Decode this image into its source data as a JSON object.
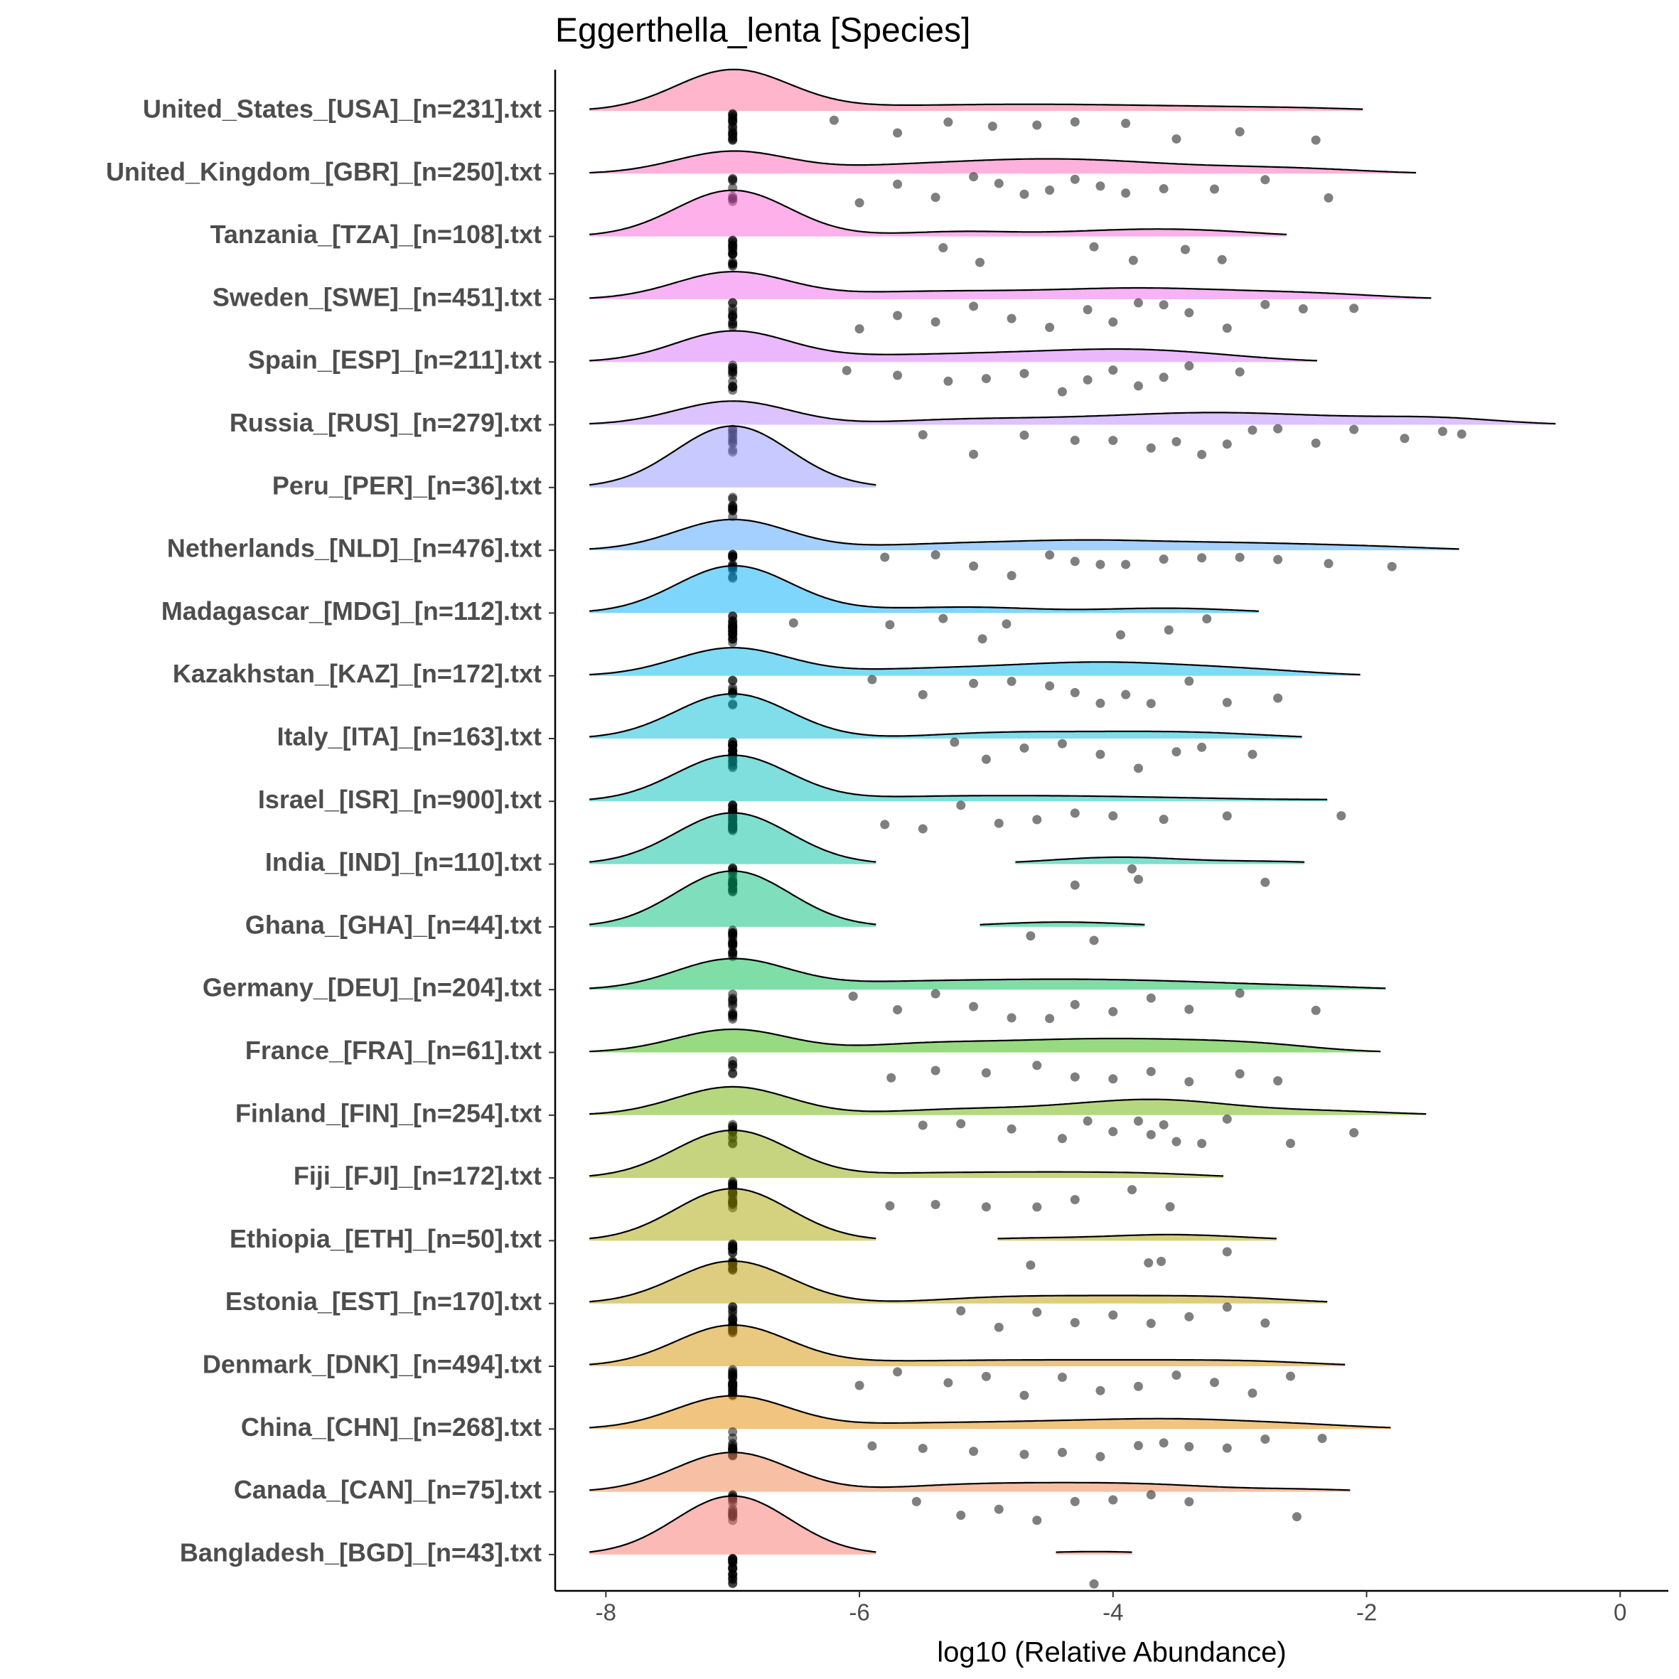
{
  "chart_data": {
    "type": "ridgeline",
    "title": "Eggerthella_lenta [Species]",
    "x_label": "log10 (Relative Abundance)",
    "categories": [
      "United_States_[USA]_[n=231].txt",
      "United_Kingdom_[GBR]_[n=250].txt",
      "Tanzania_[TZA]_[n=108].txt",
      "Sweden_[SWE]_[n=451].txt",
      "Spain_[ESP]_[n=211].txt",
      "Russia_[RUS]_[n=279].txt",
      "Peru_[PER]_[n=36].txt",
      "Netherlands_[NLD]_[n=476].txt",
      "Madagascar_[MDG]_[n=112].txt",
      "Kazakhstan_[KAZ]_[n=172].txt",
      "Italy_[ITA]_[n=163].txt",
      "Israel_[ISR]_[n=900].txt",
      "India_[IND]_[n=110].txt",
      "Ghana_[GHA]_[n=44].txt",
      "Germany_[DEU]_[n=204].txt",
      "France_[FRA]_[n=61].txt",
      "Finland_[FIN]_[n=254].txt",
      "Fiji_[FJI]_[n=172].txt",
      "Ethiopia_[ETH]_[n=50].txt",
      "Estonia_[EST]_[n=170].txt",
      "Denmark_[DNK]_[n=494].txt",
      "China_[CHN]_[n=268].txt",
      "Canada_[CAN]_[n=75].txt",
      "Bangladesh_[BGD]_[n=43].txt"
    ],
    "colors": [
      "#FF6C9A",
      "#FF63B9",
      "#FC61D5",
      "#EF67EB",
      "#DA72FB",
      "#B985FF",
      "#8F93FF",
      "#4AA2FF",
      "#00AEFA",
      "#00B7EB",
      "#00BDD5",
      "#00C0BB",
      "#00C09D",
      "#00BE7A",
      "#00BB4E",
      "#2FB600",
      "#6BB100",
      "#8FAA00",
      "#A9A400",
      "#C09B00",
      "#D39200",
      "#E38900",
      "#EF7F49",
      "#F8766D"
    ],
    "alpha": 0.5,
    "point_color": "#000000",
    "values": [
      [
        -7,
        -7,
        -7,
        -7,
        -7,
        -7,
        -7,
        -7,
        -7,
        -7,
        -7,
        -7,
        -7,
        -7,
        -7,
        -7,
        -7,
        -7,
        -7,
        -7,
        -6.2,
        -5.7,
        -5.3,
        -4.95,
        -4.6,
        -4.3,
        -3.9,
        -3.5,
        -3.0,
        -2.4
      ],
      [
        -7,
        -7,
        -7,
        -7,
        -7,
        -7,
        -7,
        -7,
        -6.0,
        -5.7,
        -5.4,
        -5.1,
        -4.9,
        -4.7,
        -4.5,
        -4.3,
        -4.1,
        -3.9,
        -3.6,
        -3.2,
        -2.8,
        -2.3
      ],
      [
        -7,
        -7,
        -7,
        -7,
        -7,
        -7,
        -7,
        -7,
        -7,
        -7,
        -7,
        -7,
        -7,
        -7,
        -7,
        -7,
        -7,
        -7,
        -5.34,
        -5.05,
        -4.15,
        -3.84,
        -3.43,
        -3.14
      ],
      [
        -7,
        -7,
        -7,
        -7,
        -7,
        -7,
        -7,
        -7,
        -7,
        -7,
        -7,
        -7,
        -6.0,
        -5.7,
        -5.4,
        -5.1,
        -4.8,
        -4.5,
        -4.2,
        -4.0,
        -3.8,
        -3.6,
        -3.4,
        -3.1,
        -2.8,
        -2.5,
        -2.1
      ],
      [
        -7,
        -7,
        -7,
        -7,
        -7,
        -7,
        -7,
        -7,
        -7,
        -7,
        -7,
        -7,
        -6.1,
        -5.7,
        -5.3,
        -5.0,
        -4.7,
        -4.4,
        -4.2,
        -4.0,
        -3.8,
        -3.6,
        -3.4,
        -3.0
      ],
      [
        -7,
        -7,
        -7,
        -7,
        -7,
        -7,
        -7,
        -7,
        -7,
        -7,
        -5.5,
        -5.1,
        -4.7,
        -4.3,
        -4.0,
        -3.7,
        -3.5,
        -3.3,
        -3.1,
        -2.9,
        -2.7,
        -2.4,
        -2.1,
        -1.7,
        -1.4,
        -1.25
      ],
      [
        -7,
        -7,
        -7,
        -7,
        -7,
        -7,
        -7,
        -7,
        -7,
        -7
      ],
      [
        -7,
        -7,
        -7,
        -7,
        -7,
        -7,
        -7,
        -7,
        -7,
        -7,
        -7,
        -7,
        -7,
        -7,
        -5.8,
        -5.4,
        -5.1,
        -4.8,
        -4.5,
        -4.3,
        -4.1,
        -3.9,
        -3.6,
        -3.3,
        -3.0,
        -2.7,
        -2.3,
        -1.8
      ],
      [
        -7,
        -7,
        -7,
        -7,
        -7,
        -7,
        -7,
        -7,
        -7,
        -7,
        -7,
        -7,
        -7,
        -7,
        -7,
        -7,
        -7,
        -7,
        -7,
        -7,
        -7,
        -7,
        -7,
        -7,
        -6.52,
        -5.76,
        -5.34,
        -5.03,
        -4.84,
        -3.94,
        -3.56,
        -3.26
      ],
      [
        -7,
        -7,
        -7,
        -7,
        -7,
        -7,
        -7,
        -7,
        -7,
        -7,
        -5.9,
        -5.5,
        -5.1,
        -4.8,
        -4.5,
        -4.3,
        -4.1,
        -3.9,
        -3.7,
        -3.4,
        -3.1,
        -2.7
      ],
      [
        -7,
        -7,
        -7,
        -7,
        -7,
        -7,
        -7,
        -7,
        -7,
        -7,
        -7,
        -7,
        -7,
        -7,
        -7,
        -7,
        -7,
        -7,
        -7,
        -7,
        -7,
        -7,
        -7,
        -7,
        -5.25,
        -5.0,
        -4.7,
        -4.4,
        -4.1,
        -3.8,
        -3.5,
        -3.3,
        -2.9
      ],
      [
        -7,
        -7,
        -7,
        -7,
        -7,
        -7,
        -7,
        -7,
        -7,
        -7,
        -7,
        -7,
        -7,
        -7,
        -7,
        -7,
        -7,
        -7,
        -7,
        -7,
        -7,
        -7,
        -7,
        -7,
        -7,
        -7,
        -7,
        -7,
        -7,
        -7,
        -5.8,
        -5.5,
        -5.2,
        -4.9,
        -4.6,
        -4.3,
        -4.0,
        -3.6,
        -3.1,
        -2.2
      ],
      [
        -7,
        -7,
        -7,
        -7,
        -7,
        -7,
        -7,
        -7,
        -7,
        -7,
        -7,
        -7,
        -7,
        -7,
        -7,
        -7,
        -7,
        -7,
        -7,
        -7,
        -4.3,
        -3.85,
        -3.8,
        -2.8
      ],
      [
        -7,
        -7,
        -7,
        -7,
        -7,
        -7,
        -7,
        -7,
        -7,
        -7,
        -7,
        -7,
        -7,
        -7,
        -7,
        -7,
        -7,
        -7,
        -7,
        -7,
        -4.65,
        -4.15
      ],
      [
        -7,
        -7,
        -7,
        -7,
        -7,
        -7,
        -7,
        -7,
        -7,
        -7,
        -7,
        -7,
        -6.05,
        -5.7,
        -5.4,
        -5.1,
        -4.8,
        -4.5,
        -4.3,
        -4.0,
        -3.7,
        -3.4,
        -3.0,
        -2.4
      ],
      [
        -7,
        -7,
        -7,
        -7,
        -7,
        -7,
        -5.75,
        -5.4,
        -5.0,
        -4.6,
        -4.3,
        -4.0,
        -3.7,
        -3.4,
        -3.0,
        -2.7
      ],
      [
        -7,
        -7,
        -7,
        -7,
        -7,
        -7,
        -7,
        -7,
        -7,
        -7,
        -7,
        -7,
        -5.5,
        -5.2,
        -4.8,
        -4.4,
        -4.2,
        -4.0,
        -3.8,
        -3.7,
        -3.6,
        -3.5,
        -3.3,
        -3.1,
        -2.6,
        -2.1
      ],
      [
        -7,
        -7,
        -7,
        -7,
        -7,
        -7,
        -7,
        -7,
        -7,
        -7,
        -7,
        -7,
        -7,
        -7,
        -7,
        -7,
        -7,
        -7,
        -7,
        -7,
        -7,
        -7,
        -7,
        -7,
        -5.76,
        -5.4,
        -5.0,
        -4.6,
        -4.3,
        -3.85,
        -3.55
      ],
      [
        -7,
        -7,
        -7,
        -7,
        -7,
        -7,
        -7,
        -7,
        -7,
        -7,
        -7,
        -7,
        -7,
        -7,
        -7,
        -7,
        -7,
        -7,
        -7,
        -7,
        -7,
        -7,
        -4.65,
        -3.72,
        -3.62,
        -3.1
      ],
      [
        -7,
        -7,
        -7,
        -7,
        -7,
        -7,
        -7,
        -7,
        -7,
        -7,
        -7,
        -7,
        -7,
        -7,
        -7,
        -7,
        -7,
        -7,
        -7,
        -7,
        -5.2,
        -4.9,
        -4.6,
        -4.3,
        -4.0,
        -3.7,
        -3.4,
        -3.1,
        -2.8
      ],
      [
        -7,
        -7,
        -7,
        -7,
        -7,
        -7,
        -7,
        -7,
        -7,
        -7,
        -7,
        -7,
        -7,
        -7,
        -7,
        -7,
        -7,
        -7,
        -7,
        -7,
        -7,
        -7,
        -7,
        -7,
        -6.0,
        -5.7,
        -5.3,
        -5.0,
        -4.7,
        -4.4,
        -4.1,
        -3.8,
        -3.5,
        -3.2,
        -2.9,
        -2.6
      ],
      [
        -7,
        -7,
        -7,
        -7,
        -7,
        -7,
        -7,
        -7,
        -7,
        -7,
        -7,
        -7,
        -7,
        -7,
        -5.9,
        -5.5,
        -5.1,
        -4.7,
        -4.4,
        -4.1,
        -3.8,
        -3.6,
        -3.4,
        -3.1,
        -2.8,
        -2.35
      ],
      [
        -7,
        -7,
        -7,
        -7,
        -7,
        -7,
        -7,
        -7,
        -7,
        -7,
        -7,
        -7,
        -7,
        -7,
        -7,
        -7,
        -5.55,
        -5.2,
        -4.9,
        -4.6,
        -4.3,
        -4.0,
        -3.7,
        -3.4,
        -2.55
      ],
      [
        -7,
        -7,
        -7,
        -7,
        -7,
        -7,
        -7,
        -7,
        -7,
        -7,
        -7,
        -7,
        -7,
        -7,
        -7,
        -7,
        -7,
        -7,
        -7,
        -7,
        -4.15
      ]
    ],
    "xlim": [
      -8.4,
      0.38
    ],
    "xticks": [
      -8,
      -6,
      -4,
      -2,
      0
    ]
  }
}
